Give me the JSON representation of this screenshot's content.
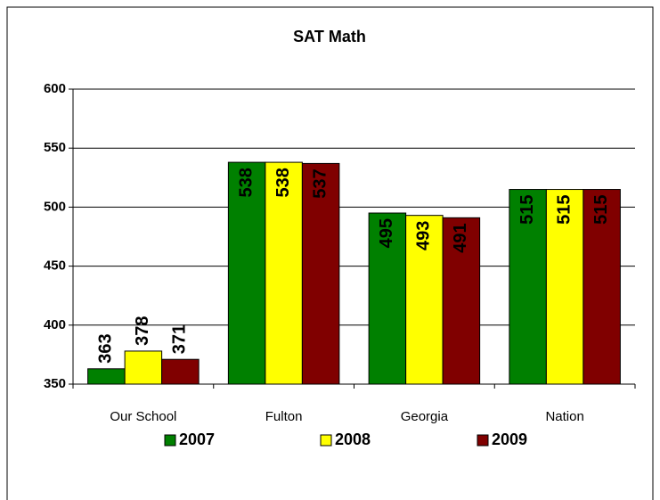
{
  "chart_data": {
    "type": "bar",
    "title": "SAT Math",
    "categories": [
      "Our School",
      "Fulton",
      "Georgia",
      "Nation"
    ],
    "series": [
      {
        "name": "2007",
        "color": "#008000",
        "values": [
          363,
          538,
          495,
          515
        ]
      },
      {
        "name": "2008",
        "color": "#ffff00",
        "values": [
          378,
          538,
          493,
          515
        ]
      },
      {
        "name": "2009",
        "color": "#800000",
        "values": [
          371,
          537,
          491,
          515
        ]
      }
    ],
    "ylim": [
      350,
      600
    ],
    "yticks": [
      350,
      400,
      450,
      500,
      550,
      600
    ],
    "grid": true,
    "legend": "bottom"
  }
}
